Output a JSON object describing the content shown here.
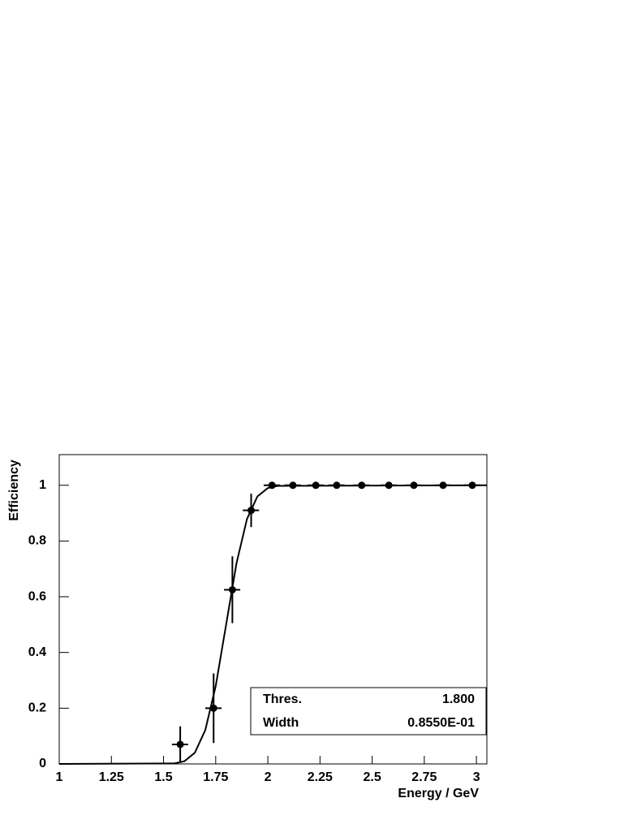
{
  "chart_data": {
    "type": "errorbar",
    "xlabel": "Energy / GeV",
    "ylabel": "Efficiency",
    "xlim": [
      1,
      3.05
    ],
    "ylim": [
      0,
      1.11
    ],
    "xticks": [
      1,
      1.25,
      1.5,
      1.75,
      2,
      2.25,
      2.5,
      2.75,
      3
    ],
    "yticks": [
      0,
      0.2,
      0.4,
      0.6,
      0.8,
      1
    ],
    "color": "#000000",
    "points": {
      "x": [
        1.58,
        1.74,
        1.83,
        1.92,
        2.02,
        2.12,
        2.23,
        2.33,
        2.45,
        2.58,
        2.7,
        2.84,
        2.98
      ],
      "values": [
        0.07,
        0.2,
        0.625,
        0.91,
        1,
        1,
        1,
        1,
        1,
        1,
        1,
        1,
        1
      ],
      "yerr": [
        0.065,
        0.125,
        0.12,
        0.06,
        0,
        0,
        0,
        0,
        0,
        0,
        0,
        0,
        0
      ],
      "xerr": [
        0.04,
        0.04,
        0.04,
        0.04,
        0.04,
        0.04,
        0.04,
        0.04,
        0.04,
        0.04,
        0.04,
        0.04,
        0.04
      ]
    },
    "fit": {
      "x": [
        1,
        1.55,
        1.6,
        1.65,
        1.7,
        1.75,
        1.8,
        1.85,
        1.9,
        1.95,
        2.0,
        2.05,
        3.05
      ],
      "values": [
        0,
        0.0017,
        0.0096,
        0.04,
        0.121,
        0.279,
        0.5,
        0.721,
        0.879,
        0.96,
        0.99,
        0.998,
        1
      ]
    },
    "stats": [
      {
        "name": "Thres.",
        "value": 1.8,
        "label": "1.800"
      },
      {
        "name": "Width",
        "value": 0.0855,
        "label": "0.8550E-01"
      }
    ]
  }
}
